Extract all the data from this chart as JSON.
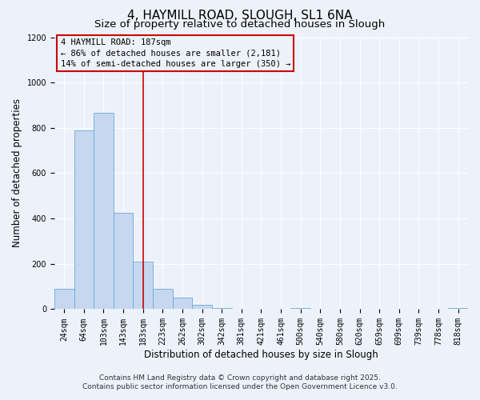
{
  "title": "4, HAYMILL ROAD, SLOUGH, SL1 6NA",
  "subtitle": "Size of property relative to detached houses in Slough",
  "xlabel": "Distribution of detached houses by size in Slough",
  "ylabel": "Number of detached properties",
  "bin_labels": [
    "24sqm",
    "64sqm",
    "103sqm",
    "143sqm",
    "183sqm",
    "223sqm",
    "262sqm",
    "302sqm",
    "342sqm",
    "381sqm",
    "421sqm",
    "461sqm",
    "500sqm",
    "540sqm",
    "580sqm",
    "620sqm",
    "659sqm",
    "699sqm",
    "739sqm",
    "778sqm",
    "818sqm"
  ],
  "bar_values": [
    90,
    790,
    865,
    425,
    210,
    90,
    50,
    20,
    5,
    0,
    0,
    0,
    5,
    0,
    0,
    0,
    0,
    0,
    0,
    0,
    5
  ],
  "bar_color": "#c5d8f0",
  "bar_edge_color": "#6baad8",
  "bar_width": 1.0,
  "vline_x": 4,
  "vline_color": "#cc0000",
  "annotation_title": "4 HAYMILL ROAD: 187sqm",
  "annotation_line1": "← 86% of detached houses are smaller (2,181)",
  "annotation_line2": "14% of semi-detached houses are larger (350) →",
  "annotation_box_color": "#cc0000",
  "ylim": [
    0,
    1200
  ],
  "yticks": [
    0,
    200,
    400,
    600,
    800,
    1000,
    1200
  ],
  "footer1": "Contains HM Land Registry data © Crown copyright and database right 2025.",
  "footer2": "Contains public sector information licensed under the Open Government Licence v3.0.",
  "bg_color": "#edf2fa",
  "grid_color": "#ffffff",
  "title_fontsize": 11,
  "subtitle_fontsize": 9.5,
  "axis_label_fontsize": 8.5,
  "tick_fontsize": 7,
  "footer_fontsize": 6.5,
  "ann_fontsize": 7.5
}
